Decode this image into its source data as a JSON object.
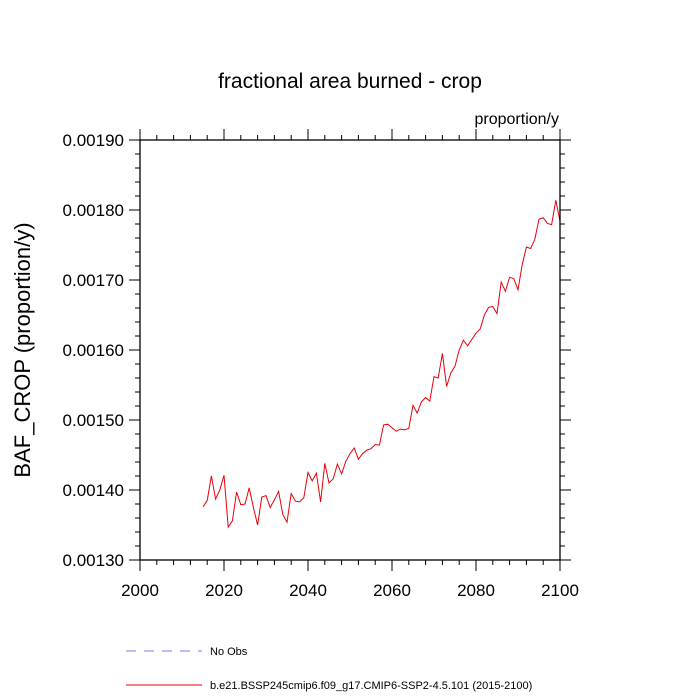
{
  "chart_data": {
    "type": "line",
    "title": "fractional area burned - crop",
    "units": "proportion/y",
    "xlabel": "",
    "ylabel": "BAF_CROP  (proportion/y)",
    "xlim": [
      2000,
      2100
    ],
    "ylim": [
      0.0013,
      0.0019
    ],
    "xticks": [
      2000,
      2020,
      2040,
      2060,
      2080,
      2100
    ],
    "xtick_labels": [
      "2000",
      "2020",
      "2040",
      "2060",
      "2080",
      "2100"
    ],
    "yticks": [
      0.0013,
      0.0014,
      0.0015,
      0.0016,
      0.0017,
      0.0018,
      0.0019
    ],
    "ytick_labels": [
      "0.00130",
      "0.00140",
      "0.00150",
      "0.00160",
      "0.00170",
      "0.00180",
      "0.00190"
    ],
    "grid": false,
    "series": [
      {
        "name": "b.e21.BSSP245cmip6.f09_g17.CMIP6-SSP2-4.5.101 (2015-2100)",
        "color": "#e8000b",
        "dash": "solid",
        "x": [
          2015,
          2016,
          2017,
          2018,
          2019,
          2020,
          2021,
          2022,
          2023,
          2024,
          2025,
          2026,
          2027,
          2028,
          2029,
          2030,
          2031,
          2032,
          2033,
          2034,
          2035,
          2036,
          2037,
          2038,
          2039,
          2040,
          2041,
          2042,
          2043,
          2044,
          2045,
          2046,
          2047,
          2048,
          2049,
          2050,
          2051,
          2052,
          2053,
          2054,
          2055,
          2056,
          2057,
          2058,
          2059,
          2060,
          2061,
          2062,
          2063,
          2064,
          2065,
          2066,
          2067,
          2068,
          2069,
          2070,
          2071,
          2072,
          2073,
          2074,
          2075,
          2076,
          2077,
          2078,
          2079,
          2080,
          2081,
          2082,
          2083,
          2084,
          2085,
          2086,
          2087,
          2088,
          2089,
          2090,
          2091,
          2092,
          2093,
          2094,
          2095,
          2096,
          2097,
          2098,
          2099,
          2100
        ],
        "values": [
          0.001376,
          0.001385,
          0.00142,
          0.001387,
          0.0014,
          0.001421,
          0.001347,
          0.001356,
          0.001397,
          0.001379,
          0.00138,
          0.001403,
          0.001375,
          0.00135,
          0.00139,
          0.001392,
          0.001375,
          0.001386,
          0.001398,
          0.001365,
          0.001354,
          0.001395,
          0.001384,
          0.001383,
          0.001389,
          0.001425,
          0.001413,
          0.001424,
          0.001383,
          0.001438,
          0.00141,
          0.001416,
          0.001437,
          0.001423,
          0.001441,
          0.001452,
          0.00146,
          0.001444,
          0.001452,
          0.001457,
          0.001459,
          0.001465,
          0.001464,
          0.001493,
          0.001494,
          0.001489,
          0.001484,
          0.001487,
          0.001486,
          0.001488,
          0.001521,
          0.00151,
          0.001526,
          0.001532,
          0.001527,
          0.001562,
          0.00156,
          0.001595,
          0.001548,
          0.001567,
          0.001577,
          0.0016,
          0.001614,
          0.001606,
          0.001615,
          0.001624,
          0.00163,
          0.00165,
          0.001661,
          0.001662,
          0.001652,
          0.001697,
          0.001684,
          0.001704,
          0.001702,
          0.001686,
          0.001722,
          0.001747,
          0.001745,
          0.001758,
          0.001787,
          0.001789,
          0.001781,
          0.001779,
          0.001814,
          0.001784
        ]
      },
      {
        "name": "No Obs",
        "color": "#7b7bf0",
        "dash": "dashed",
        "x": [],
        "values": []
      }
    ],
    "legend": {
      "placement": "bottom",
      "entries": [
        "No Obs",
        "b.e21.BSSP245cmip6.f09_g17.CMIP6-SSP2-4.5.101 (2015-2100)"
      ]
    }
  }
}
